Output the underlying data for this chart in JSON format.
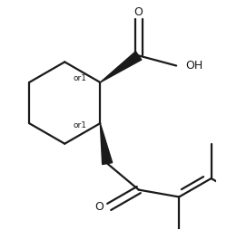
{
  "bg_color": "#ffffff",
  "line_color": "#1a1a1a",
  "line_width": 1.6,
  "fig_width": 2.5,
  "fig_height": 2.54,
  "dpi": 100,
  "xlim": [
    -0.6,
    1.5
  ],
  "ylim": [
    -1.4,
    0.95
  ]
}
